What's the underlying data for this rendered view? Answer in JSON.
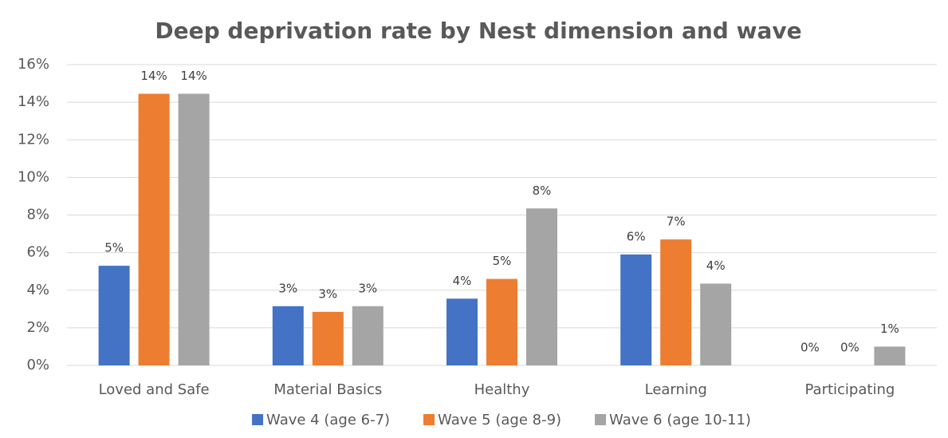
{
  "chart_data": {
    "type": "bar",
    "title": "Deep deprivation rate by Nest dimension and wave",
    "categories": [
      "Loved and Safe",
      "Material Basics",
      "Healthy",
      "Learning",
      "Participating"
    ],
    "series": [
      {
        "name": "Wave 4 (age 6-7)",
        "color": "#4472c4",
        "values": [
          5.3,
          3.15,
          3.55,
          5.9,
          0
        ],
        "value_labels": [
          "5%",
          "3%",
          "4%",
          "6%",
          "0%"
        ]
      },
      {
        "name": "Wave 5 (age 8-9)",
        "color": "#ed7d31",
        "values": [
          14.45,
          2.85,
          4.6,
          6.7,
          0
        ],
        "value_labels": [
          "14%",
          "3%",
          "5%",
          "7%",
          "0%"
        ]
      },
      {
        "name": "Wave 6 (age 10-11)",
        "color": "#a5a5a5",
        "values": [
          14.45,
          3.15,
          8.35,
          4.35,
          1.0
        ],
        "value_labels": [
          "14%",
          "3%",
          "8%",
          "4%",
          "1%"
        ]
      }
    ],
    "ylim": [
      0,
      16
    ],
    "yticks": [
      {
        "value": 0,
        "label": "0%"
      },
      {
        "value": 2,
        "label": "2%"
      },
      {
        "value": 4,
        "label": "4%"
      },
      {
        "value": 6,
        "label": "6%"
      },
      {
        "value": 8,
        "label": "8%"
      },
      {
        "value": 10,
        "label": "10%"
      },
      {
        "value": 12,
        "label": "12%"
      },
      {
        "value": 14,
        "label": "14%"
      },
      {
        "value": 16,
        "label": "16%"
      }
    ],
    "grid": true,
    "legend": "bottom"
  }
}
